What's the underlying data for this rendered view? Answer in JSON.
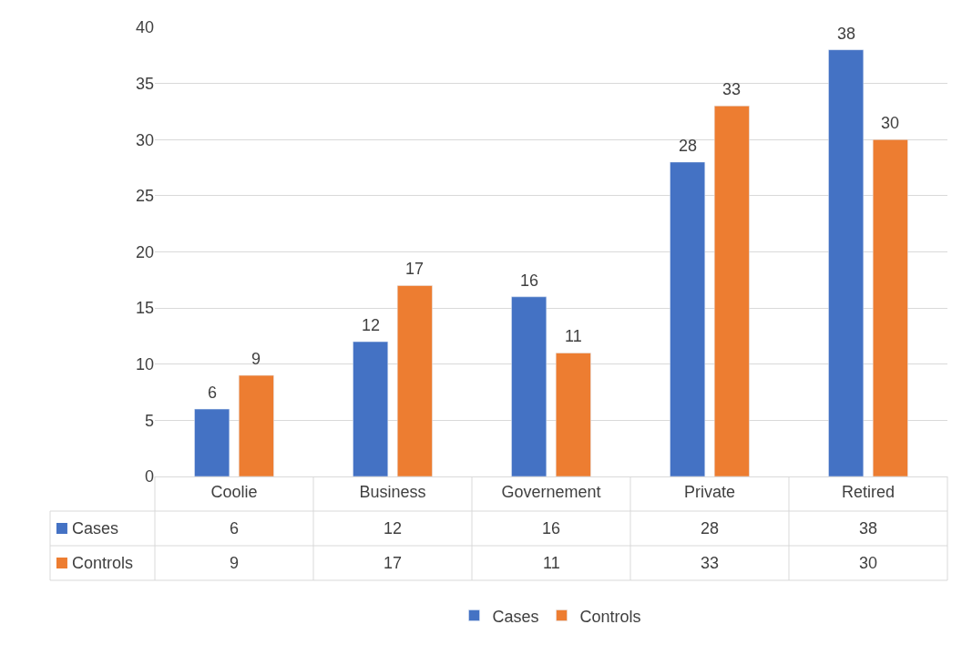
{
  "chart_data": {
    "type": "bar",
    "categories": [
      "Coolie",
      "Business",
      "Governement",
      "Private",
      "Retired"
    ],
    "series": [
      {
        "name": "Cases",
        "color": "#4472c4",
        "values": [
          6,
          12,
          16,
          28,
          38
        ],
        "value_labels": [
          "6",
          "12",
          "16",
          "28",
          "38"
        ]
      },
      {
        "name": "Controls",
        "color": "#ed7d31",
        "values": [
          9,
          17,
          11,
          33,
          30
        ],
        "value_labels": [
          "9",
          "17",
          "11",
          "33",
          "30"
        ]
      }
    ],
    "ylim": [
      0,
      40
    ],
    "yticks": [
      0,
      5,
      10,
      15,
      20,
      25,
      30,
      35,
      40
    ],
    "annotations": [
      "6",
      "12",
      "16",
      "28",
      "38",
      "9",
      "17",
      "11",
      "33",
      "30"
    ],
    "grid": "y",
    "legend": "bottom",
    "data_labels": true
  }
}
